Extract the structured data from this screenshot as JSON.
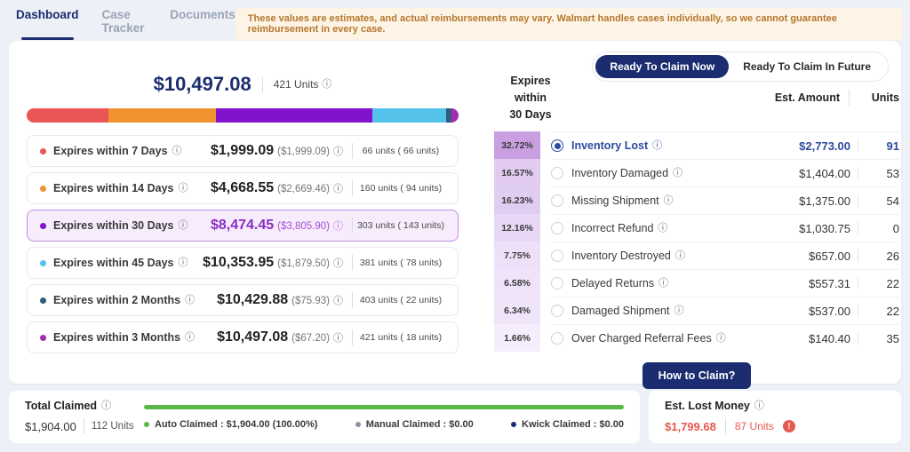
{
  "nav": {
    "tabs": [
      {
        "label": "Dashboard"
      },
      {
        "label": "Case Tracker"
      },
      {
        "label": "Documents"
      }
    ],
    "banner": "These values are estimates, and actual reimbursements may vary. Walmart handles cases individually, so we cannot guarantee reimbursement in every case."
  },
  "toggle": {
    "now": "Ready To Claim Now",
    "future": "Ready To Claim In Future"
  },
  "summary": {
    "total_amount": "$10,497.08",
    "total_units": "421 Units"
  },
  "bar": {
    "segments": [
      {
        "name": "expires-7-days",
        "color": "#ea5556",
        "width": "19%"
      },
      {
        "name": "expires-14-days",
        "color": "#f0932e",
        "width": "24.8%"
      },
      {
        "name": "expires-30-days",
        "color": "#8213cd",
        "width": "36.2%"
      },
      {
        "name": "expires-45-days",
        "color": "#54c2ea",
        "width": "17.2%"
      },
      {
        "name": "expires-2-months",
        "color": "#2d5f78",
        "width": "1.2%"
      },
      {
        "name": "expires-3-months",
        "color": "#a42ab4",
        "width": "1.6%"
      }
    ]
  },
  "expiry_rows": [
    {
      "label": "Expires within 7 Days",
      "amount": "$1,999.09",
      "delta": "($1,999.09)",
      "units": "66 units ( 66 units)",
      "dot": "#ea5556"
    },
    {
      "label": "Expires within 14 Days",
      "amount": "$4,668.55",
      "delta": "($2,669.46)",
      "units": "160 units ( 94 units)",
      "dot": "#f0932e"
    },
    {
      "label": "Expires within 30 Days",
      "amount": "$8,474.45",
      "delta": "($3,805.90)",
      "units": "303 units ( 143 units)",
      "dot": "#8213cd"
    },
    {
      "label": "Expires within 45 Days",
      "amount": "$10,353.95",
      "delta": "($1,879.50)",
      "units": "381 units ( 78 units)",
      "dot": "#54c2ea"
    },
    {
      "label": "Expires within 2 Months",
      "amount": "$10,429.88",
      "delta": "($75.93)",
      "units": "403 units ( 22 units)",
      "dot": "#2d5f78"
    },
    {
      "label": "Expires within 3 Months",
      "amount": "$10,497.08",
      "delta": "($67.20)",
      "units": "421 units ( 18 units)",
      "dot": "#a42ab4"
    }
  ],
  "claims": {
    "title_line1": "Expires within",
    "title_line2": "30 Days",
    "col_amount": "Est. Amount",
    "col_units": "Units",
    "rows": [
      {
        "pct": "32.72%",
        "bg": "#c99fe2",
        "label": "Inventory Lost",
        "amount": "$2,773.00",
        "units": "91"
      },
      {
        "pct": "16.57%",
        "bg": "#e1cbf1",
        "label": "Inventory Damaged",
        "amount": "$1,404.00",
        "units": "53"
      },
      {
        "pct": "16.23%",
        "bg": "#e2cdf2",
        "label": "Missing Shipment",
        "amount": "$1,375.00",
        "units": "54"
      },
      {
        "pct": "12.16%",
        "bg": "#e8d7f5",
        "label": "Incorrect Refund",
        "amount": "$1,030.75",
        "units": "0"
      },
      {
        "pct": "7.75%",
        "bg": "#eee0f8",
        "label": "Inventory Destroyed",
        "amount": "$657.00",
        "units": "26"
      },
      {
        "pct": "6.58%",
        "bg": "#f0e3f9",
        "label": "Delayed Returns",
        "amount": "$557.31",
        "units": "22"
      },
      {
        "pct": "6.34%",
        "bg": "#f0e4f9",
        "label": "Damaged Shipment",
        "amount": "$537.00",
        "units": "22"
      },
      {
        "pct": "1.66%",
        "bg": "#f5edfb",
        "label": "Over Charged Referral Fees",
        "amount": "$140.40",
        "units": "35"
      }
    ],
    "button": "How to Claim?"
  },
  "total_claimed": {
    "title": "Total Claimed",
    "amount": "$1,904.00",
    "units": "112 Units",
    "bar_color": "#5bb847",
    "legend": [
      {
        "label": "Auto Claimed : $1,904.00 (100.00%)",
        "dot": "#5bb847"
      },
      {
        "label": "Manual Claimed : $0.00",
        "dot": "#8a93a8"
      },
      {
        "label": "Kwick Claimed : $0.00",
        "dot": "#1b2d70"
      }
    ]
  },
  "est_lost": {
    "title": "Est. Lost Money",
    "amount": "$1,799.68",
    "units": "87 Units"
  },
  "icons": {
    "info": "ⓘ",
    "alert": "!"
  }
}
